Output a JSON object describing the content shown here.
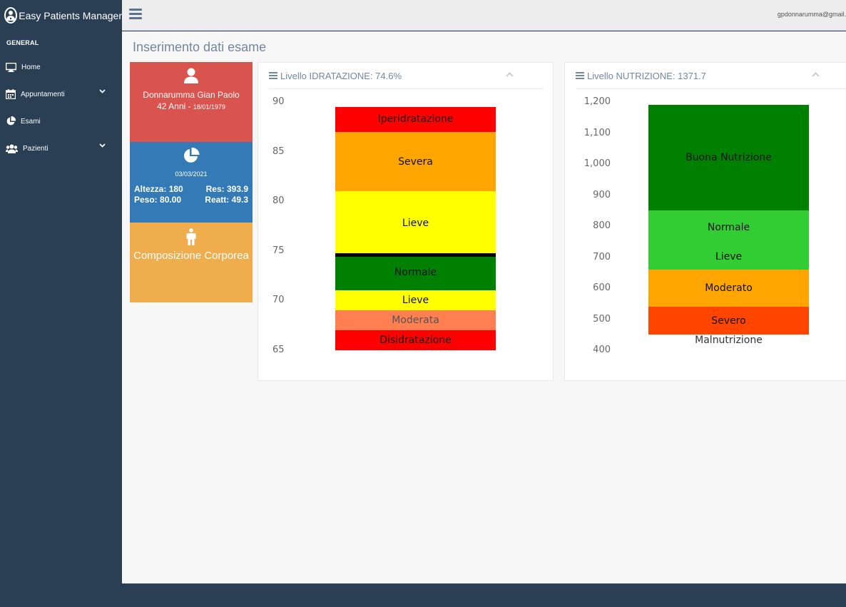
{
  "app": {
    "title": "Easy Patients Manager"
  },
  "sidebar": {
    "section": "GENERAL",
    "items": [
      {
        "label": "Home",
        "icon": "desktop-icon"
      },
      {
        "label": "Appuntamenti",
        "icon": "calendar-icon",
        "expandable": true
      },
      {
        "label": "Esami",
        "icon": "pie-chart-icon"
      },
      {
        "label": "Pazienti",
        "icon": "users-icon",
        "expandable": true
      }
    ]
  },
  "topbar": {
    "user": "gpdonnarumma@gmail."
  },
  "page": {
    "title": "Inserimento dati esame"
  },
  "patient": {
    "name": "Donnarumma Gian Paolo",
    "age": "42 Anni - ",
    "dob": "18/01/1979"
  },
  "exam": {
    "date": "03/03/2021",
    "altezza_label": "Altezza:",
    "altezza": "180",
    "peso_label": "Peso:",
    "peso": "80.00",
    "res_label": "Res:",
    "res": "393.9",
    "reatt_label": "Reatt:",
    "reatt": "49.3"
  },
  "composition": {
    "title": "Composizione Corporea"
  },
  "hydration": {
    "title": "Livello IDRATAZIONE: 74.6%"
  },
  "nutrition": {
    "title": "Livello NUTRIZIONE: 1371.7"
  },
  "colors": {
    "sidebar": "#2a3f54",
    "red": "#d9534f",
    "blue": "#337ab7",
    "orange": "#f0ad4e"
  },
  "chart_data": [
    {
      "type": "bar",
      "yticks": [
        "90",
        "85",
        "80",
        "75",
        "70",
        "65"
      ],
      "ylim": [
        65,
        90
      ],
      "value": 74.6,
      "bands": [
        {
          "label": "Iperidratazione",
          "from": 87,
          "to": 89.5,
          "color": "#ff0000"
        },
        {
          "label": "Severa",
          "from": 81,
          "to": 87,
          "color": "#ffa500"
        },
        {
          "label": "Lieve",
          "from": 74.6,
          "to": 81,
          "color": "#ffff00"
        },
        {
          "label": "Normale",
          "from": 71,
          "to": 74.6,
          "color": "#008000"
        },
        {
          "label": "Lieve",
          "from": 69,
          "to": 71,
          "color": "#ffff00"
        },
        {
          "label": "Moderata",
          "from": 67,
          "to": 69,
          "color": "#ff7f50"
        },
        {
          "label": "Disidratazione",
          "from": 65,
          "to": 67,
          "color": "#ff0000"
        }
      ]
    },
    {
      "type": "bar",
      "yticks": [
        "1,200",
        "1,100",
        "1,000",
        "900",
        "800",
        "700",
        "600",
        "500",
        "400"
      ],
      "ylim": [
        400,
        1200
      ],
      "bands": [
        {
          "label": "Buona Nutrizione",
          "from": 850,
          "to": 1190,
          "color": "#008000"
        },
        {
          "label": "Normale",
          "from": 740,
          "to": 850,
          "color": "#32cd32"
        },
        {
          "label": "Lieve",
          "from": 660,
          "to": 740,
          "color": "#32cd32"
        },
        {
          "label": "Moderato",
          "from": 540,
          "to": 660,
          "color": "#ffa500"
        },
        {
          "label": "Severo",
          "from": 450,
          "to": 540,
          "color": "#ff4500"
        }
      ],
      "below_label": "Malnutrizione"
    }
  ]
}
